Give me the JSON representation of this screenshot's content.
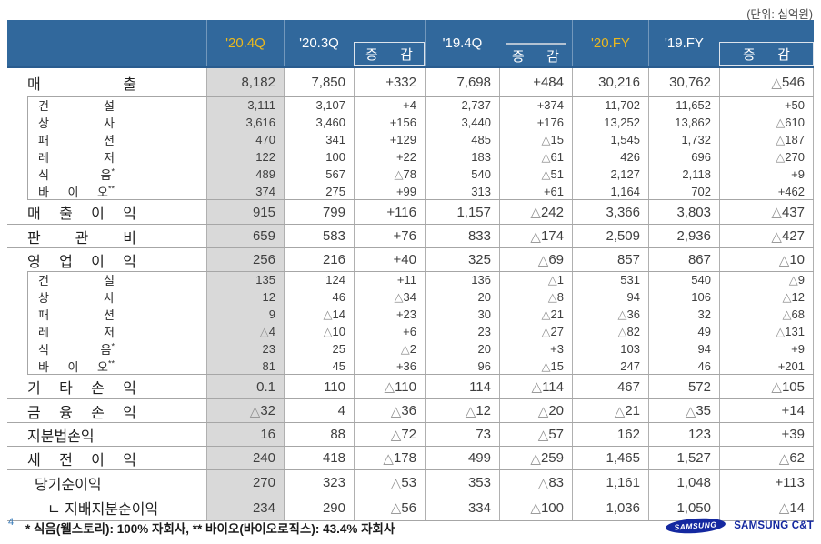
{
  "unit_label": "(단위: 십억원)",
  "page_number": "4",
  "footnote": "* 식음(웰스토리): 100% 자회사, ** 바이오(바이오로직스): 43.4% 자회사",
  "logo": {
    "brand": "SAMSUNG",
    "company": "SAMSUNG C&T"
  },
  "colors": {
    "header_bg": "#31689C",
    "header_text": "#FFFFFF",
    "accent_yellow": "#EBB81E",
    "highlight_column_bg": "#D9D9D9",
    "grid_line": "#A6A6A6",
    "logo_blue": "#1428A0"
  },
  "table": {
    "columns": [
      {
        "key": "q4_2020",
        "label": "'20.4Q",
        "highlight": true,
        "yellow": true
      },
      {
        "key": "q3_2020",
        "label": "'20.3Q"
      },
      {
        "key": "chg_qoq",
        "label": "증 감",
        "boxed": true
      },
      {
        "key": "q4_2019",
        "label": "'19.4Q"
      },
      {
        "key": "chg_yoy",
        "label": "증 감",
        "line": true
      },
      {
        "key": "fy_2020",
        "label": "'20.FY",
        "yellow": true
      },
      {
        "key": "fy_2019",
        "label": "'19.FY"
      },
      {
        "key": "chg_fy",
        "label": "증 감",
        "boxed": true
      }
    ],
    "rows": [
      {
        "label": "매 출",
        "values": [
          "8,182",
          "7,850",
          "+332",
          "7,698",
          "+484",
          "30,216",
          "30,762",
          "△546"
        ],
        "children": [
          {
            "label": "건 설",
            "values": [
              "3,111",
              "3,107",
              "+4",
              "2,737",
              "+374",
              "11,702",
              "11,652",
              "+50"
            ]
          },
          {
            "label": "상 사",
            "values": [
              "3,616",
              "3,460",
              "+156",
              "3,440",
              "+176",
              "13,252",
              "13,862",
              "△610"
            ]
          },
          {
            "label": "패 션",
            "values": [
              "470",
              "341",
              "+129",
              "485",
              "△15",
              "1,545",
              "1,732",
              "△187"
            ]
          },
          {
            "label": "레 저",
            "values": [
              "122",
              "100",
              "+22",
              "183",
              "△61",
              "426",
              "696",
              "△270"
            ]
          },
          {
            "label": "식 음*",
            "values": [
              "489",
              "567",
              "△78",
              "540",
              "△51",
              "2,127",
              "2,118",
              "+9"
            ]
          },
          {
            "label": "바 이 오**",
            "values": [
              "374",
              "275",
              "+99",
              "313",
              "+61",
              "1,164",
              "702",
              "+462"
            ]
          }
        ]
      },
      {
        "label": "매 출 이 익",
        "values": [
          "915",
          "799",
          "+116",
          "1,157",
          "△242",
          "3,366",
          "3,803",
          "△437"
        ]
      },
      {
        "label": "판 관 비",
        "values": [
          "659",
          "583",
          "+76",
          "833",
          "△174",
          "2,509",
          "2,936",
          "△427"
        ]
      },
      {
        "label": "영 업 이 익",
        "values": [
          "256",
          "216",
          "+40",
          "325",
          "△69",
          "857",
          "867",
          "△10"
        ],
        "children": [
          {
            "label": "건 설",
            "values": [
              "135",
              "124",
              "+11",
              "136",
              "△1",
              "531",
              "540",
              "△9"
            ]
          },
          {
            "label": "상 사",
            "values": [
              "12",
              "46",
              "△34",
              "20",
              "△8",
              "94",
              "106",
              "△12"
            ]
          },
          {
            "label": "패 션",
            "values": [
              "9",
              "△14",
              "+23",
              "30",
              "△21",
              "△36",
              "32",
              "△68"
            ]
          },
          {
            "label": "레 저",
            "values": [
              "△4",
              "△10",
              "+6",
              "23",
              "△27",
              "△82",
              "49",
              "△131"
            ]
          },
          {
            "label": "식 음*",
            "values": [
              "23",
              "25",
              "△2",
              "20",
              "+3",
              "103",
              "94",
              "+9"
            ]
          },
          {
            "label": "바 이 오**",
            "values": [
              "81",
              "45",
              "+36",
              "96",
              "△15",
              "247",
              "46",
              "+201"
            ]
          }
        ]
      },
      {
        "label": "기 타 손 익",
        "values": [
          "0.1",
          "110",
          "△110",
          "114",
          "△114",
          "467",
          "572",
          "△105"
        ]
      },
      {
        "label": "금 융 손 익",
        "values": [
          "△32",
          "4",
          "△36",
          "△12",
          "△20",
          "△21",
          "△35",
          "+14"
        ]
      },
      {
        "label": "지분법손익",
        "values": [
          "16",
          "88",
          "△72",
          "73",
          "△57",
          "162",
          "123",
          "+39"
        ]
      },
      {
        "label": "세 전 이 익",
        "values": [
          "240",
          "418",
          "△178",
          "499",
          "△259",
          "1,465",
          "1,527",
          "△62"
        ]
      },
      {
        "label": "당기순이익",
        "values": [
          "270",
          "323",
          "△53",
          "353",
          "△83",
          "1,161",
          "1,048",
          "+113"
        ],
        "indent": 1,
        "tall": true
      },
      {
        "label": "ㄴ 지배지분순이익",
        "values": [
          "234",
          "290",
          "△56",
          "334",
          "△100",
          "1,036",
          "1,050",
          "△14"
        ],
        "indent": 2,
        "tall": true,
        "joined": true
      }
    ]
  }
}
